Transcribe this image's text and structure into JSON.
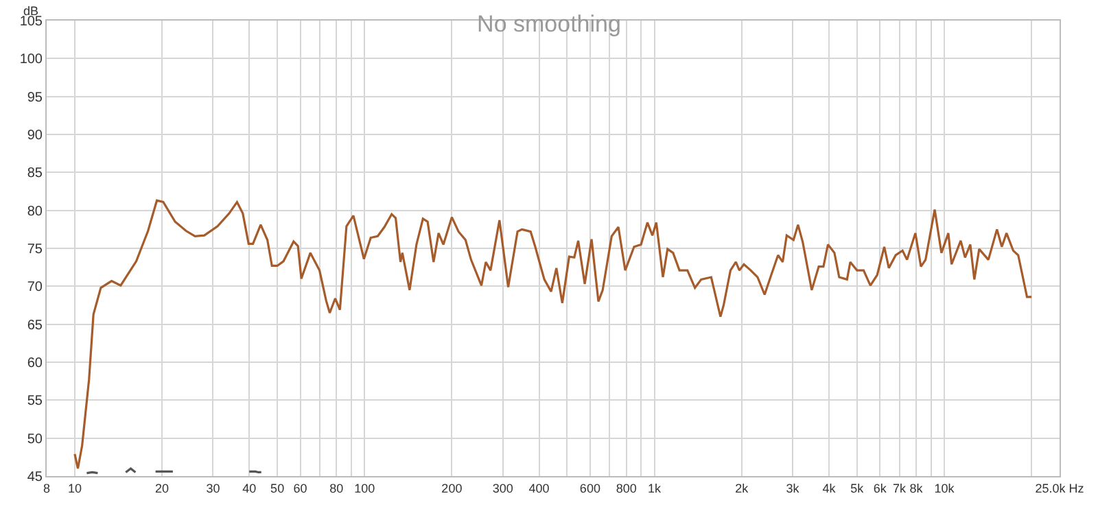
{
  "chart_data": {
    "type": "line",
    "title": "No smoothing",
    "ylabel": "dB",
    "log": "x",
    "grid": true,
    "xlim": [
      8,
      25000
    ],
    "ylim": [
      45,
      105
    ],
    "xticks": [
      8,
      10,
      20,
      30,
      40,
      50,
      60,
      {
        "value": 70,
        "label": null
      },
      80,
      {
        "value": 90,
        "label": null
      },
      100,
      200,
      300,
      400,
      {
        "value": 500,
        "label": null
      },
      600,
      {
        "value": 700,
        "label": null
      },
      800,
      {
        "value": 900,
        "label": null
      },
      {
        "value": 1000,
        "label": "1k"
      },
      {
        "value": 2000,
        "label": "2k"
      },
      {
        "value": 3000,
        "label": "3k"
      },
      {
        "value": 4000,
        "label": "4k"
      },
      {
        "value": 5000,
        "label": "5k"
      },
      {
        "value": 6000,
        "label": "6k"
      },
      {
        "value": 7000,
        "label": "7k"
      },
      {
        "value": 8000,
        "label": "8k"
      },
      {
        "value": 9000,
        "label": null
      },
      {
        "value": 10000,
        "label": "10k"
      },
      {
        "value": 20000,
        "label": null
      },
      {
        "value": 25000,
        "label": "25.0k Hz"
      }
    ],
    "yticks": [
      45,
      50,
      55,
      60,
      65,
      70,
      75,
      80,
      85,
      90,
      95,
      100,
      105
    ],
    "series": [
      {
        "color": "#a65b2b",
        "x": [
          10,
          10.25,
          10.6,
          11.2,
          11.6,
          12.3,
          13.4,
          14.4,
          16.3,
          17.9,
          19.2,
          20.2,
          22.2,
          24.2,
          26,
          28,
          31.1,
          34.1,
          36.3,
          38,
          39.8,
          41.2,
          43.8,
          46.2,
          47.9,
          50,
          52.5,
          56.9,
          58.9,
          60.5,
          65,
          69.9,
          73.7,
          75.8,
          79.2,
          82.2,
          86.6,
          91.5,
          96.6,
          99.5,
          105,
          111,
          117,
          124,
          128,
          133,
          135,
          143,
          151,
          159,
          165,
          173,
          180,
          187,
          200,
          211,
          223,
          233,
          253,
          262,
          272,
          292,
          313,
          337,
          349,
          374,
          388,
          417,
          440,
          459,
          481,
          508,
          529,
          546,
          575,
          607,
          641,
          663,
          712,
          751,
          793,
          851,
          899,
          946,
          984,
          1015,
          1070,
          1110,
          1160,
          1220,
          1300,
          1380,
          1450,
          1570,
          1690,
          1733,
          1830,
          1910,
          1964,
          2036,
          2150,
          2270,
          2400,
          2530,
          2670,
          2770,
          2860,
          3020,
          3130,
          3250,
          3490,
          3690,
          3830,
          3970,
          4180,
          4340,
          4620,
          4740,
          5000,
          5270,
          5560,
          5870,
          6210,
          6440,
          6800,
          7180,
          7440,
          7950,
          8310,
          8620,
          9270,
          9780,
          10330,
          10600,
          11400,
          11800,
          12300,
          12700,
          13200,
          14200,
          15200,
          15800,
          16400,
          17300,
          18000,
          19300,
          20000
        ],
        "values": [
          47.9,
          46.0,
          49,
          57.7,
          66.3,
          69.8,
          70.7,
          70.1,
          73.3,
          77.3,
          81.3,
          81.1,
          78.5,
          77.3,
          76.6,
          76.7,
          77.9,
          79.6,
          81.1,
          79.6,
          75.6,
          75.6,
          78.1,
          76.1,
          72.7,
          72.7,
          73.3,
          75.9,
          75.3,
          71,
          74.4,
          72.1,
          68.1,
          66.5,
          68.4,
          66.9,
          77.9,
          79.3,
          75.6,
          73.6,
          76.4,
          76.6,
          77.8,
          79.5,
          79,
          73.2,
          74.4,
          69.5,
          75.5,
          78.9,
          78.5,
          73.2,
          77,
          75.5,
          79.1,
          77.2,
          76.1,
          73.5,
          70.1,
          73.2,
          72.1,
          78.7,
          69.9,
          77.2,
          77.5,
          77.2,
          75.2,
          70.9,
          69.3,
          72.4,
          67.8,
          73.9,
          73.8,
          76,
          70.3,
          76.2,
          68,
          69.5,
          76.6,
          77.8,
          72.1,
          75.2,
          75.5,
          78.4,
          76.7,
          78.4,
          71.2,
          74.9,
          74.4,
          72.1,
          72.1,
          69.8,
          70.9,
          71.2,
          66,
          67.5,
          72.1,
          73.2,
          72.1,
          72.9,
          72.1,
          71.2,
          68.9,
          71.5,
          74.1,
          73.2,
          76.7,
          76.1,
          78.1,
          75.8,
          69.5,
          72.6,
          72.6,
          75.5,
          74.4,
          71.2,
          70.9,
          73.2,
          72.1,
          72.1,
          70.1,
          71.5,
          75.2,
          72.4,
          74.1,
          74.7,
          73.5,
          77,
          72.6,
          73.5,
          80.1,
          74.4,
          77,
          72.9,
          76,
          73.8,
          75.5,
          70.9,
          74.9,
          73.5,
          77.5,
          75.2,
          77,
          74.7,
          74.1,
          68.6,
          68.6
        ]
      },
      {
        "color": "#555555",
        "x": [
          11,
          11.5,
          12,
          13,
          15,
          15.6,
          16.2,
          17,
          19,
          20,
          21,
          21.8,
          30,
          40,
          41,
          42,
          43,
          44
        ],
        "values": [
          45.4,
          45.5,
          45.4,
          null,
          45.5,
          46,
          45.5,
          null,
          45.6,
          45.6,
          45.6,
          45.6,
          null,
          45.6,
          45.6,
          45.6,
          45.5,
          45.5
        ]
      }
    ]
  }
}
